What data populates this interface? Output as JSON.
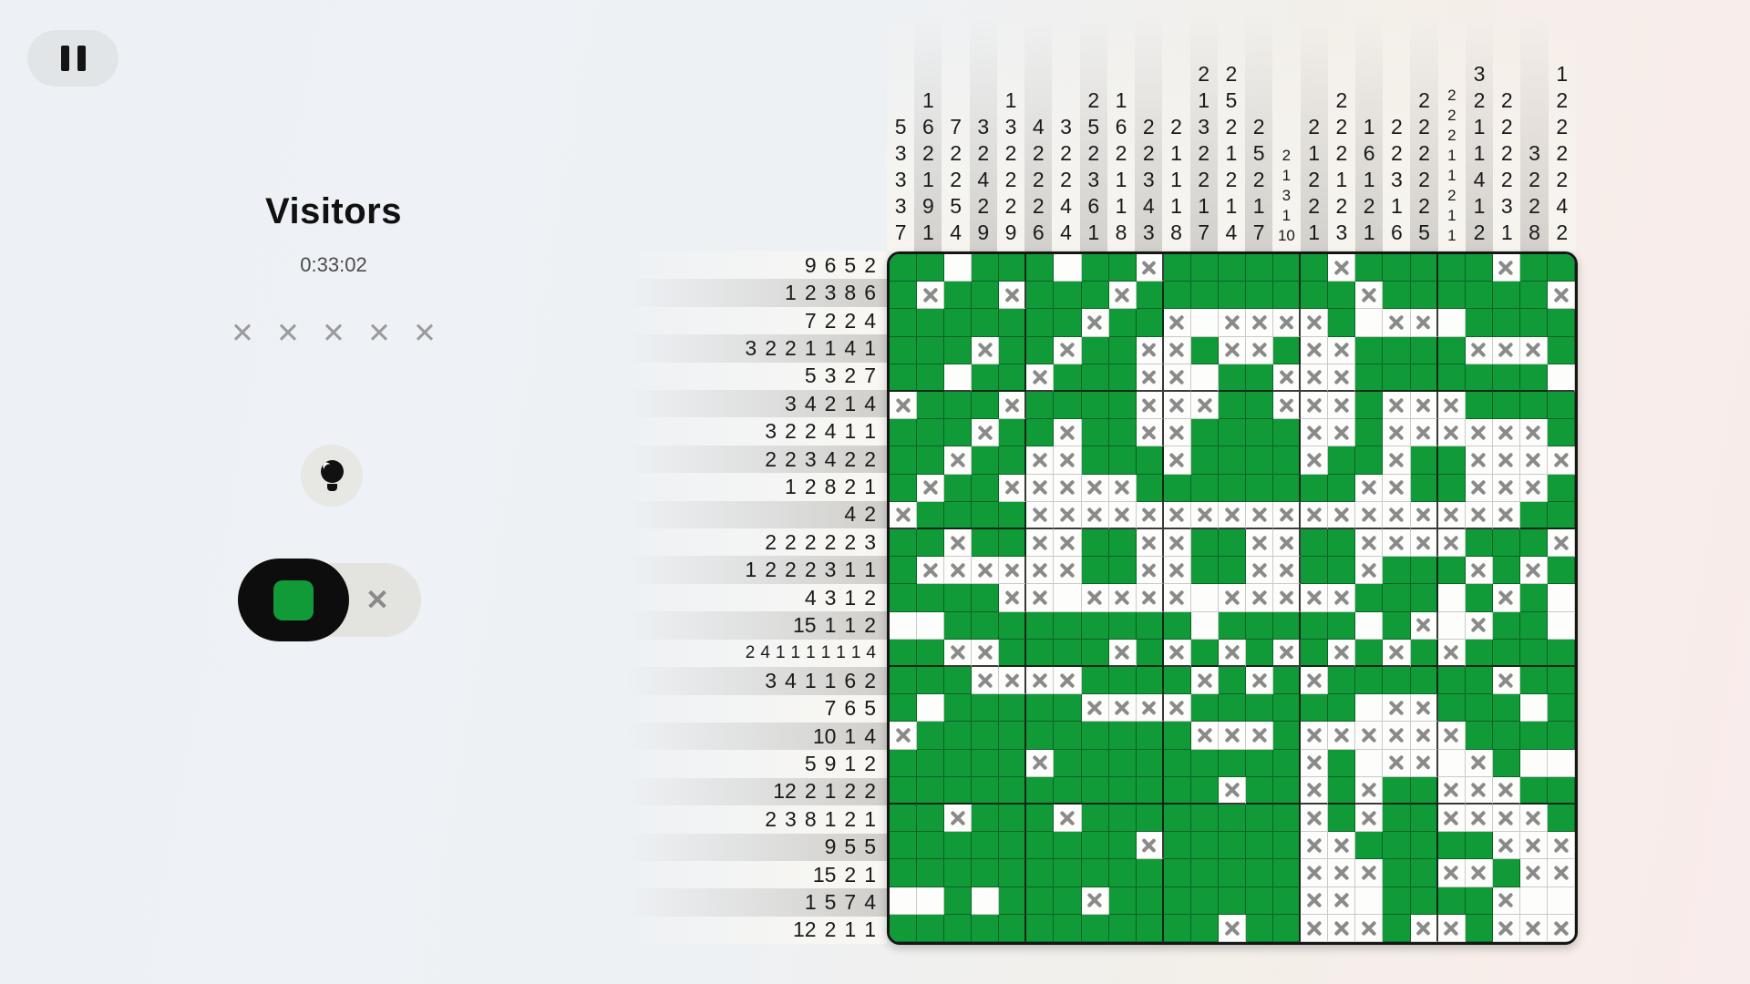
{
  "panel": {
    "title": "Visitors",
    "timer": "0:33:02",
    "lives": {
      "count": 5,
      "glyph": "✕"
    },
    "pause_icon": "pause",
    "hint_icon": "lightbulb",
    "mode_toggle": {
      "fill_selected": true,
      "fill_icon": "green-square",
      "mark_glyph": "✕"
    }
  },
  "colors": {
    "fill_green": "#109a38",
    "x_gray": "#8a8a8a",
    "toggle_black": "#0d0d0d",
    "page_left": "#edf1f6",
    "page_right": "#f9ecec"
  },
  "board": {
    "size": 25,
    "col_clues": [
      [
        5,
        3,
        3,
        3,
        7
      ],
      [
        1,
        6,
        2,
        1,
        9,
        1
      ],
      [
        7,
        2,
        2,
        5,
        4
      ],
      [
        3,
        2,
        4,
        2,
        9
      ],
      [
        1,
        3,
        2,
        2,
        2,
        9
      ],
      [
        4,
        2,
        2,
        2,
        6
      ],
      [
        3,
        2,
        2,
        4,
        4
      ],
      [
        2,
        5,
        2,
        3,
        6,
        1
      ],
      [
        1,
        6,
        2,
        1,
        1,
        8
      ],
      [
        2,
        2,
        3,
        4,
        3
      ],
      [
        2,
        1,
        1,
        1,
        8
      ],
      [
        2,
        1,
        3,
        2,
        2,
        1,
        7
      ],
      [
        2,
        5,
        2,
        1,
        2,
        1,
        4
      ],
      [
        2,
        5,
        2,
        1,
        7
      ],
      [
        2,
        1,
        3,
        1,
        10
      ],
      [
        2,
        1,
        2,
        2,
        1
      ],
      [
        2,
        2,
        2,
        1,
        2,
        3
      ],
      [
        1,
        6,
        1,
        2,
        1
      ],
      [
        2,
        2,
        3,
        1,
        6
      ],
      [
        2,
        2,
        2,
        2,
        2,
        5
      ],
      [
        2,
        2,
        2,
        1,
        1,
        2,
        1,
        1
      ],
      [
        3,
        2,
        1,
        1,
        4,
        1,
        2
      ],
      [
        2,
        2,
        2,
        2,
        3,
        1
      ],
      [
        3,
        2,
        2,
        8
      ],
      [
        1,
        2,
        2,
        2,
        2,
        4,
        2
      ]
    ],
    "row_clues": [
      [
        9,
        6,
        5,
        2
      ],
      [
        1,
        2,
        3,
        8,
        6
      ],
      [
        7,
        2,
        2,
        4
      ],
      [
        3,
        2,
        2,
        1,
        1,
        4,
        1
      ],
      [
        5,
        3,
        2,
        7
      ],
      [
        3,
        4,
        2,
        1,
        4
      ],
      [
        3,
        2,
        2,
        4,
        1,
        1
      ],
      [
        2,
        2,
        3,
        4,
        2,
        2
      ],
      [
        1,
        2,
        8,
        2,
        1
      ],
      [
        4,
        2
      ],
      [
        2,
        2,
        2,
        2,
        2,
        3
      ],
      [
        1,
        2,
        2,
        2,
        3,
        1,
        1
      ],
      [
        4,
        3,
        1,
        2
      ],
      [
        15,
        1,
        1,
        2
      ],
      [
        2,
        4,
        1,
        1,
        1,
        1,
        1,
        1,
        4
      ],
      [
        3,
        4,
        1,
        1,
        6,
        2
      ],
      [
        7,
        6,
        5
      ],
      [
        10,
        1,
        4
      ],
      [
        5,
        9,
        1,
        2
      ],
      [
        12,
        2,
        1,
        2,
        2
      ],
      [
        2,
        3,
        8,
        1,
        2,
        1
      ],
      [
        9,
        5,
        5
      ],
      [
        15,
        2,
        1
      ],
      [
        1,
        5,
        7,
        4
      ],
      [
        12,
        2,
        1,
        1
      ]
    ],
    "cells": [
      "GGWGGGWGGXGGGGGGXGGGGGXGG",
      "GXGGXGGGXGGGGGGGGXGGGGGGX",
      "GGGGGGGXGGXWXXXXGWXXWGGGG",
      "GGGXGGXGGXXGXXGXXGGGGXXXG",
      "GGWGGXGGGXXWGGXXXGGGGGGGW",
      "XGGGXGGGGXXXGGXXXGXXXGGGG",
      "GGGXGGXGGXXGGGGXXGXXXXXXG",
      "GGXGGXXGGGXGGGGXGGXGGXXXX",
      "GXGGXXXXXGGGGGGGGXXGGXXXG",
      "XGGGGXXXXXXXXXXXXXXXXXXGG",
      "GGXGGXXGGXXGGXXGGXXXXGGGX",
      "GXXXXXXGGXXGGXXGGXGGGXGXG",
      "GGGGXXWXXXXWXXXXXGGGWGXGW",
      "WWGGGGGGGGGWGGGGGWGXWXGGW",
      "GGXXGGGGXGXGXGXGXGXGXGGGG",
      "GGGXXXXGGGGXGXGXGGGGGGXGG",
      "GWGGGGGXXXXGGGGGGWXXGGGWG",
      "XGGGGGGGGGGXXXGXXXXXXGGGG",
      "GGGGGXGGGGGGGGGXGWXXWXGWW",
      "GGGGGGGGGGGGXGGXGXGGXXXGG",
      "GGXGGGXGGGGGGGGXGXGGXXXXG",
      "GGGGGGGGGXGGGGGXXGGGGGXXX",
      "GGGGGGGGGGGGGGGXXXGGXXGXX",
      "WWGWGGGXGGGGGGGXXWGGGGXWW",
      "GGGGGGGGGGGGXGGXXXGXXGXXX"
    ]
  }
}
